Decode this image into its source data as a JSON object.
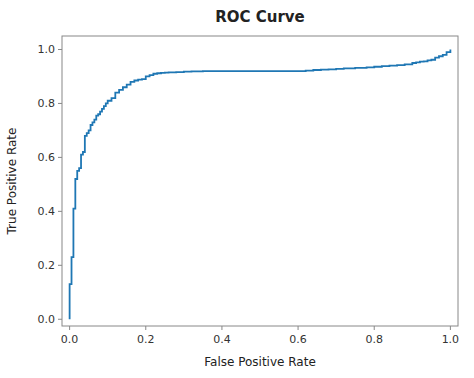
{
  "chart_data": {
    "type": "line",
    "line_style": "step",
    "title": "ROC Curve",
    "xlabel": "False Positive Rate",
    "ylabel": "True Positive Rate",
    "color": "#1f77b4",
    "grid": false,
    "xlim": [
      -0.02,
      1.02
    ],
    "ylim": [
      -0.025,
      1.05
    ],
    "xticks": [
      {
        "value": 0,
        "label": "0.0"
      },
      0.2,
      0.4,
      0.6,
      0.8,
      {
        "value": 1,
        "label": "1.0"
      }
    ],
    "yticks": [
      {
        "value": 0,
        "label": "0.0"
      },
      0.2,
      0.4,
      0.6,
      0.8,
      {
        "value": 1,
        "label": "1.0"
      }
    ],
    "x": [
      0.0,
      0.0,
      0.0,
      0.005,
      0.005,
      0.01,
      0.01,
      0.01,
      0.01,
      0.015,
      0.015,
      0.02,
      0.02,
      0.025,
      0.025,
      0.03,
      0.03,
      0.035,
      0.035,
      0.04,
      0.04,
      0.045,
      0.045,
      0.05,
      0.055,
      0.06,
      0.065,
      0.07,
      0.075,
      0.08,
      0.085,
      0.09,
      0.095,
      0.1,
      0.11,
      0.12,
      0.13,
      0.14,
      0.15,
      0.16,
      0.17,
      0.18,
      0.19,
      0.2,
      0.21,
      0.22,
      0.23,
      0.24,
      0.25,
      0.26,
      0.28,
      0.3,
      0.32,
      0.35,
      0.4,
      0.45,
      0.5,
      0.55,
      0.6,
      0.62,
      0.64,
      0.66,
      0.68,
      0.7,
      0.72,
      0.75,
      0.78,
      0.8,
      0.82,
      0.84,
      0.86,
      0.88,
      0.9,
      0.91,
      0.92,
      0.93,
      0.94,
      0.95,
      0.96,
      0.97,
      0.98,
      0.99,
      1.0
    ],
    "values": [
      0.0,
      0.05,
      0.13,
      0.13,
      0.23,
      0.23,
      0.28,
      0.29,
      0.41,
      0.41,
      0.52,
      0.52,
      0.55,
      0.55,
      0.56,
      0.56,
      0.61,
      0.61,
      0.62,
      0.62,
      0.68,
      0.68,
      0.69,
      0.7,
      0.72,
      0.73,
      0.74,
      0.755,
      0.76,
      0.77,
      0.78,
      0.79,
      0.8,
      0.81,
      0.82,
      0.84,
      0.85,
      0.86,
      0.87,
      0.88,
      0.885,
      0.888,
      0.89,
      0.9,
      0.905,
      0.91,
      0.912,
      0.913,
      0.914,
      0.915,
      0.916,
      0.918,
      0.919,
      0.92,
      0.92,
      0.92,
      0.92,
      0.92,
      0.92,
      0.922,
      0.924,
      0.925,
      0.926,
      0.928,
      0.93,
      0.932,
      0.934,
      0.936,
      0.938,
      0.94,
      0.942,
      0.945,
      0.95,
      0.952,
      0.955,
      0.956,
      0.96,
      0.962,
      0.97,
      0.975,
      0.98,
      0.99,
      1.0
    ]
  }
}
